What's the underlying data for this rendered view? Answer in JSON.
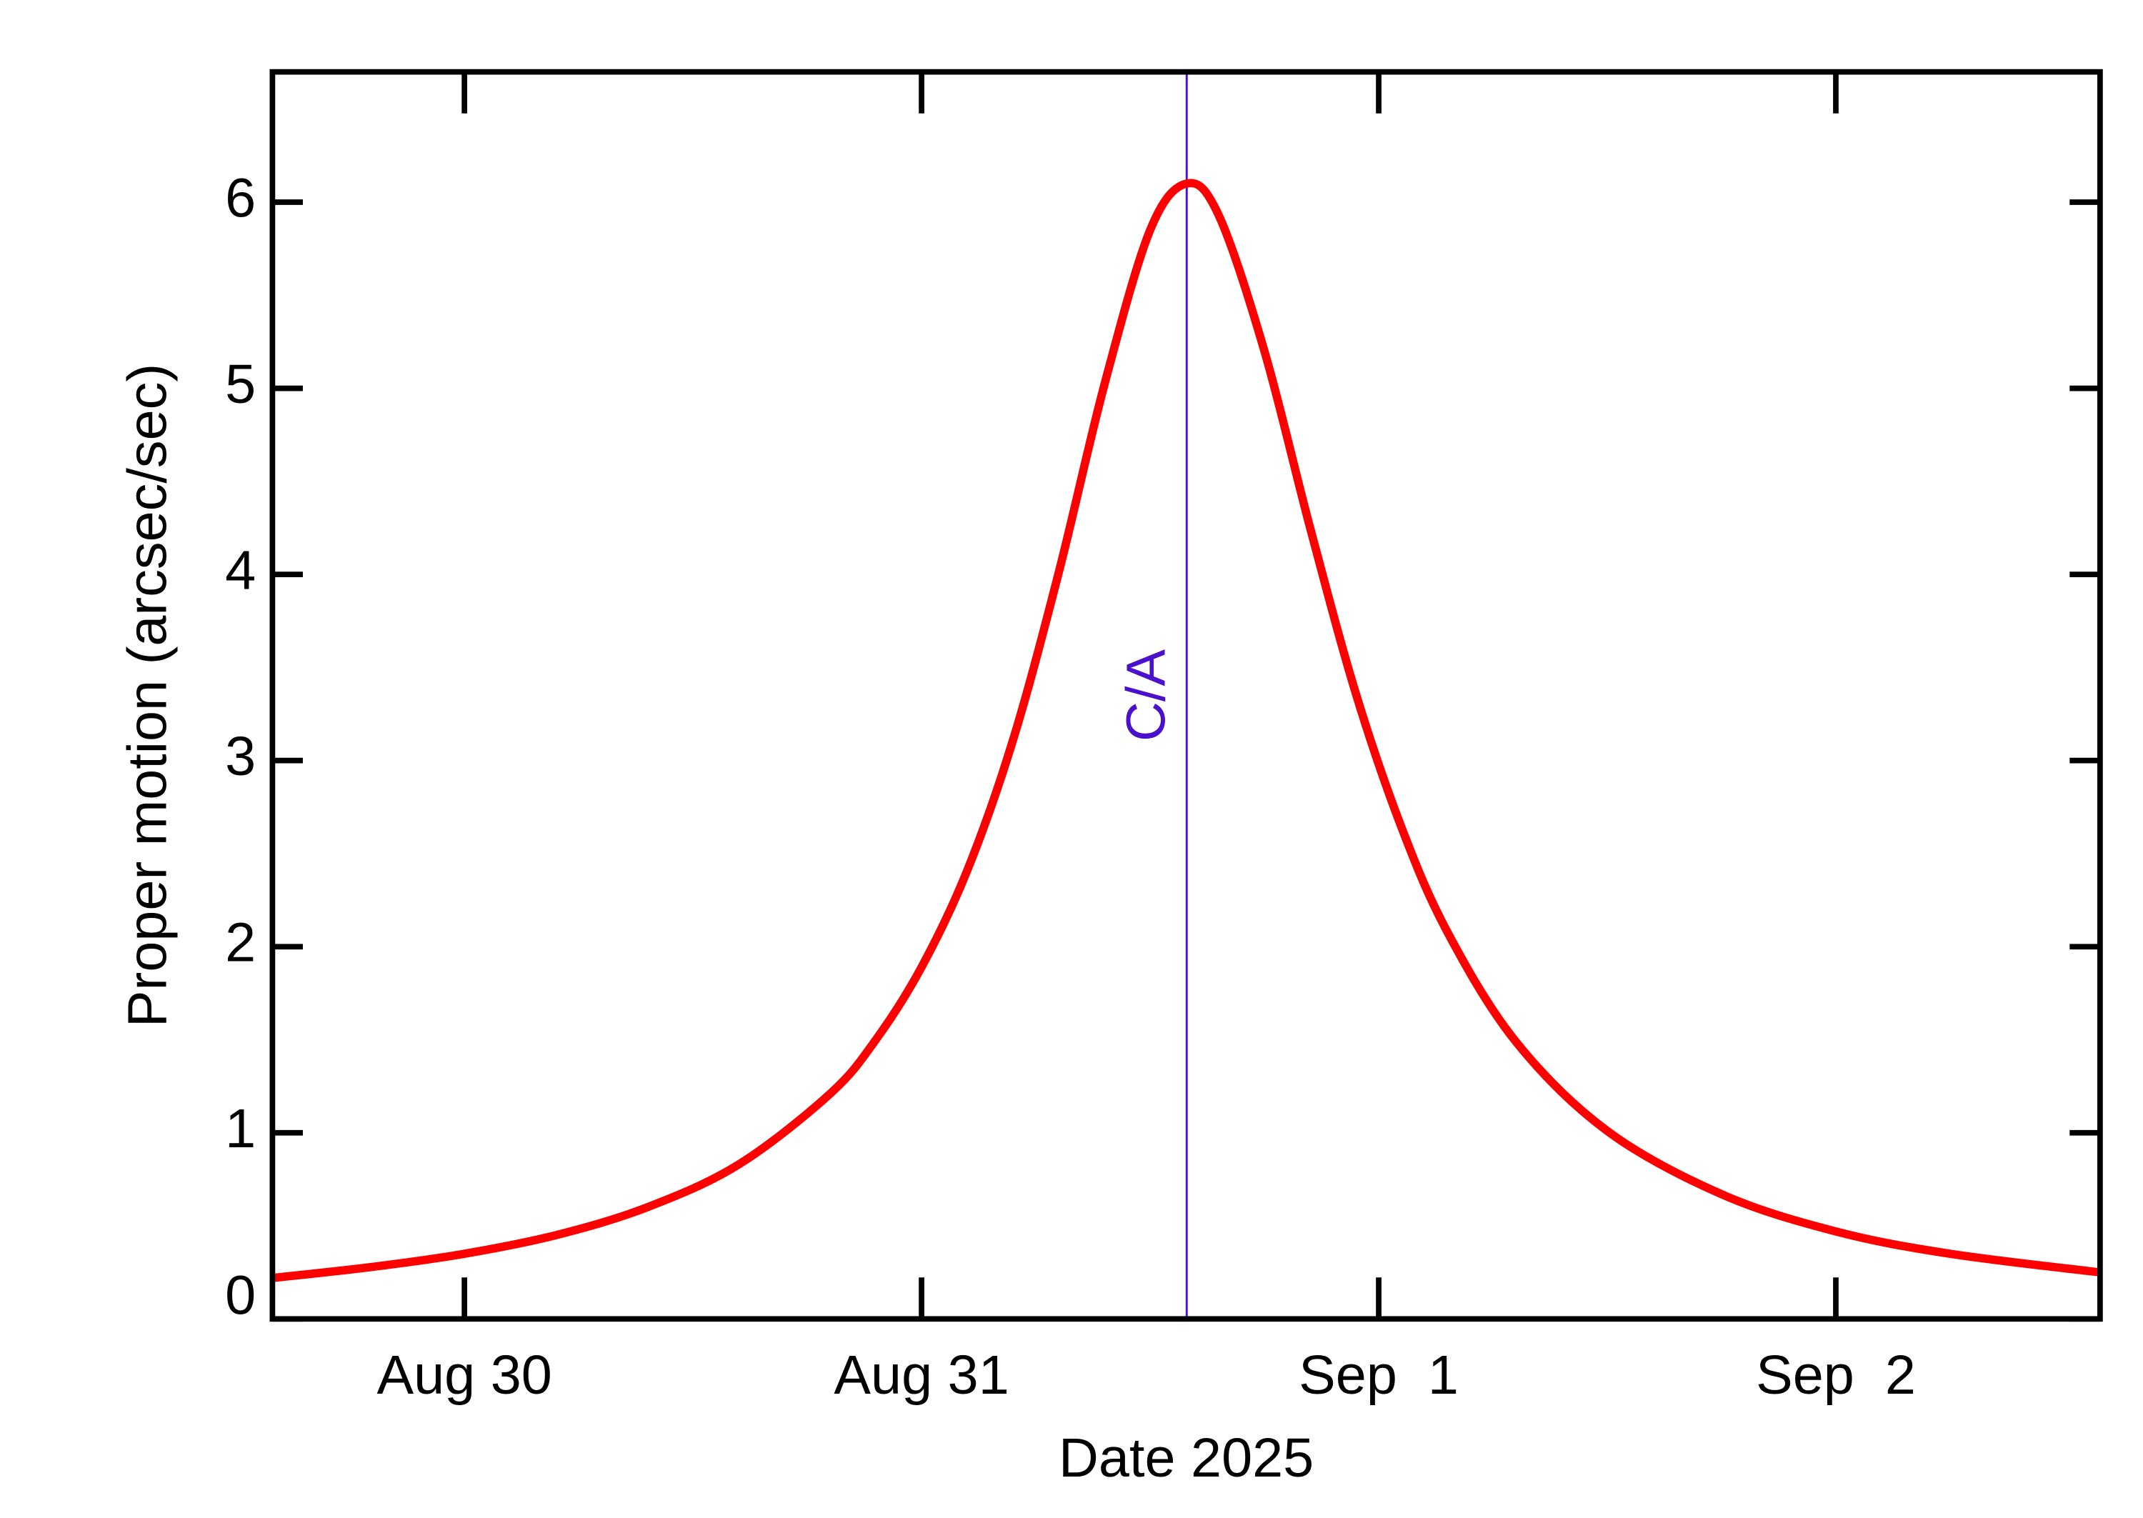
{
  "chart_data": {
    "type": "line",
    "x_label": "Date 2025",
    "y_label": "Proper motion (arcsec/sec)",
    "x": [
      -0.42,
      -0.2,
      0,
      0.2,
      0.4,
      0.6,
      0.8,
      0.9,
      1.0,
      1.1,
      1.2,
      1.3,
      1.4,
      1.5,
      1.58,
      1.65,
      1.75,
      1.85,
      1.95,
      2.05,
      2.15,
      2.3,
      2.5,
      2.75,
      3.0,
      3.25,
      3.578
    ],
    "series": [
      {
        "color": "#ff0000",
        "values": [
          0.22,
          0.28,
          0.35,
          0.45,
          0.6,
          0.83,
          1.21,
          1.5,
          1.89,
          2.41,
          3.11,
          4.01,
          5.02,
          5.85,
          6.1,
          5.93,
          5.2,
          4.25,
          3.36,
          2.64,
          2.08,
          1.49,
          1.01,
          0.67,
          0.47,
          0.35,
          0.25
        ]
      }
    ],
    "xlim": [
      -0.42,
      3.578
    ],
    "ylim": [
      0,
      6.7
    ],
    "xticks": [
      {
        "value": 0,
        "label": "Aug 30"
      },
      {
        "value": 1,
        "label": "Aug 31"
      },
      {
        "value": 2,
        "label": "Sep  1"
      },
      {
        "value": 3,
        "label": "Sep  2"
      }
    ],
    "yticks": [
      0,
      1,
      2,
      3,
      4,
      5,
      6
    ],
    "annotations": [
      {
        "text": "C/A",
        "x": 1.58,
        "y": 3.35,
        "color": "#4a10cc"
      }
    ]
  }
}
